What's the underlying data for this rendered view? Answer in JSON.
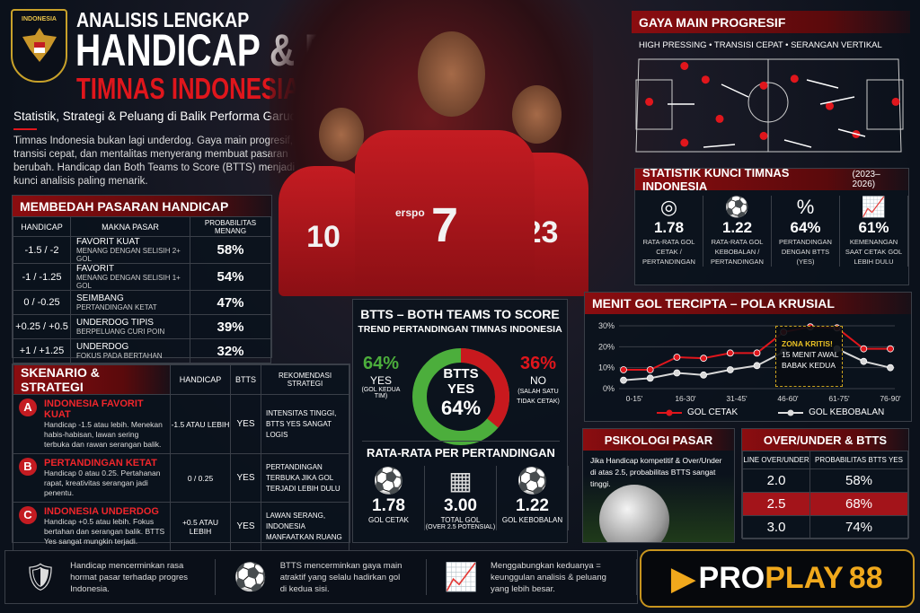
{
  "header": {
    "crest_text": "INDONESIA",
    "kicker": "ANALISIS LENGKAP",
    "title": "HANDICAP & BTTS",
    "title_red": "TIMNAS INDONESIA 2026",
    "subtitle": "Statistik, Strategi & Peluang di Balik Performa Garuda",
    "intro": "Timnas Indonesia bukan lagi underdog. Gaya main progresif, transisi cepat, dan mentalitas menyerang membuat pasaran berubah. Handicap dan Both Teams to Score (BTTS) menjadi kunci analisis paling menarik."
  },
  "players": {
    "brand": "erspo",
    "numbers": [
      "10",
      "7",
      "23"
    ]
  },
  "handicap": {
    "title": "MEMBEDAH PASARAN HANDICAP",
    "columns": [
      "HANDICAP",
      "MAKNA PASAR",
      "PROBABILITAS MENANG"
    ],
    "rows": [
      {
        "line": "-1.5 / -2",
        "meaning": "FAVORIT KUAT",
        "detail": "MENANG DENGAN SELISIH 2+ GOL",
        "prob": "58%"
      },
      {
        "line": "-1 / -1.25",
        "meaning": "FAVORIT",
        "detail": "MENANG DENGAN SELISIH 1+ GOL",
        "prob": "54%"
      },
      {
        "line": "0 / -0.25",
        "meaning": "SEIMBANG",
        "detail": "PERTANDINGAN KETAT",
        "prob": "47%"
      },
      {
        "line": "+0.25 / +0.5",
        "meaning": "UNDERDOG TIPIS",
        "detail": "BERPELUANG CURI POIN",
        "prob": "39%"
      },
      {
        "line": "+1 / +1.25",
        "meaning": "UNDERDOG",
        "detail": "FOKUS PADA BERTAHAN",
        "prob": "32%"
      }
    ]
  },
  "scenario": {
    "title": "SKENARIO & STRATEGI",
    "columns": [
      "HANDICAP",
      "BTTS",
      "REKOMENDASI STRATEGI"
    ],
    "rows": [
      {
        "badge": "A",
        "name": "INDONESIA FAVORIT KUAT",
        "desc": "Handicap -1.5 atau lebih. Menekan habis-habisan, lawan sering terbuka dan rawan serangan balik.",
        "handicap": "-1.5 ATAU LEBIH",
        "btts": "YES",
        "rec": "INTENSITAS TINGGI, BTTS YES SANGAT LOGIS"
      },
      {
        "badge": "B",
        "name": "PERTANDINGAN KETAT",
        "desc": "Handicap 0 atau 0.25. Pertahanan rapat, kreativitas serangan jadi penentu.",
        "handicap": "0 / 0.25",
        "btts": "YES",
        "rec": "PERTANDINGAN TERBUKA JIKA GOL TERJADI LEBIH DULU"
      },
      {
        "badge": "C",
        "name": "INDONESIA UNDERDOG",
        "desc": "Handicap +0.5 atau lebih. Fokus bertahan dan serangan balik. BTTS Yes sangat mungkin terjadi.",
        "handicap": "+0.5 ATAU LEBIH",
        "btts": "YES",
        "rec": "LAWAN SERANG, INDONESIA MANFAATKAN RUANG"
      }
    ]
  },
  "btts": {
    "title": "BTTS – BOTH TEAMS TO SCORE",
    "subtitle": "TREND PERTANDINGAN TIMNAS INDONESIA",
    "yes_pct": "64%",
    "yes_label": "YES",
    "yes_note": "(GOL KEDUA TIM)",
    "no_pct": "36%",
    "no_label": "NO",
    "no_note": "(SALAH SATU TIDAK CETAK)",
    "center_line1": "BTTS",
    "center_line2": "YES",
    "center_pct": "64%",
    "yes_value": 64,
    "no_value": 36,
    "yes_color": "#4cae3c",
    "no_color": "#c8191e",
    "avg_title": "RATA-RATA PER PERTANDINGAN",
    "avg": [
      {
        "icon": "football-icon",
        "value": "1.78",
        "label": "GOL CETAK",
        "note": ""
      },
      {
        "icon": "goal-net-icon",
        "value": "3.00",
        "label": "TOTAL GOL",
        "note": "(OVER 2.5 POTENSIAL)"
      },
      {
        "icon": "football-icon",
        "value": "1.22",
        "label": "GOL KEBOBALAN",
        "note": ""
      }
    ]
  },
  "style": {
    "title": "GAYA MAIN PROGRESIF",
    "tags": "HIGH PRESSING  •  TRANSISI CEPAT  •  SERANGAN VERTIKAL"
  },
  "stats": {
    "title": "STATISTIK KUNCI TIMNAS INDONESIA",
    "period": "(2023–2026)",
    "items": [
      {
        "icon": "target-icon",
        "value": "1.78",
        "label": "RATA-RATA GOL CETAK / PERTANDINGAN"
      },
      {
        "icon": "football-icon",
        "value": "1.22",
        "label": "RATA-RATA GOL KEBOBALAN / PERTANDINGAN"
      },
      {
        "icon": "percent-icon",
        "value": "64%",
        "label": "PERTANDINGAN DENGAN BTTS (YES)"
      },
      {
        "icon": "growth-chart-icon",
        "value": "61%",
        "label": "KEMENANGAN SAAT CETAK GOL LEBIH DULU"
      }
    ]
  },
  "chart_data": {
    "type": "line",
    "title": "MENIT GOL TERCIPTA – POLA KRUSIAL",
    "x_tick_labels": [
      "0-15'",
      "16-30'",
      "31-45'",
      "46-60'",
      "61-75'",
      "76-90'"
    ],
    "ylim": [
      0,
      30
    ],
    "y_ticks": [
      "0%",
      "10%",
      "20%",
      "30%"
    ],
    "grid": true,
    "legend": "bottom",
    "series": [
      {
        "name": "GOL CETAK",
        "color": "#e0161c",
        "values": [
          9,
          9,
          15,
          14.5,
          17,
          17,
          27,
          29.5,
          29,
          19,
          19
        ]
      },
      {
        "name": "GOL KEBOBALAN",
        "color": "#d8d8d8",
        "values": [
          4,
          5,
          7.5,
          6.5,
          9,
          11,
          17.5,
          null,
          19,
          13,
          10
        ]
      }
    ],
    "annotation": {
      "title": "ZONA KRITIS!",
      "text1": "15 MENIT AWAL",
      "text2": "BABAK KEDUA"
    }
  },
  "psychology": {
    "title": "PSIKOLOGI PASAR",
    "text": "Jika Handicap kompetitif & Over/Under di atas 2.5, probabilitas BTTS sangat tinggi."
  },
  "overunder": {
    "title": "OVER/UNDER & BTTS",
    "columns": [
      "LINE OVER/UNDER",
      "PROBABILITAS BTTS YES"
    ],
    "rows": [
      {
        "line": "2.0",
        "prob": "58%"
      },
      {
        "line": "2.5",
        "prob": "68%",
        "highlight": true
      },
      {
        "line": "3.0",
        "prob": "74%"
      }
    ]
  },
  "footer": {
    "items": [
      {
        "icon": "shield-icon",
        "text": "Handicap mencerminkan rasa hormat pasar terhadap progres Indonesia."
      },
      {
        "icon": "football-icon",
        "text": "BTTS mencerminkan gaya main atraktif yang selalu hadirkan gol di kedua sisi."
      },
      {
        "icon": "growth-chart-icon",
        "text": "Menggabungkan keduanya = keunggulan analisis & peluang yang lebih besar."
      }
    ],
    "logo_pro": "PRO",
    "logo_play": "PLAY",
    "logo_num": "88"
  }
}
